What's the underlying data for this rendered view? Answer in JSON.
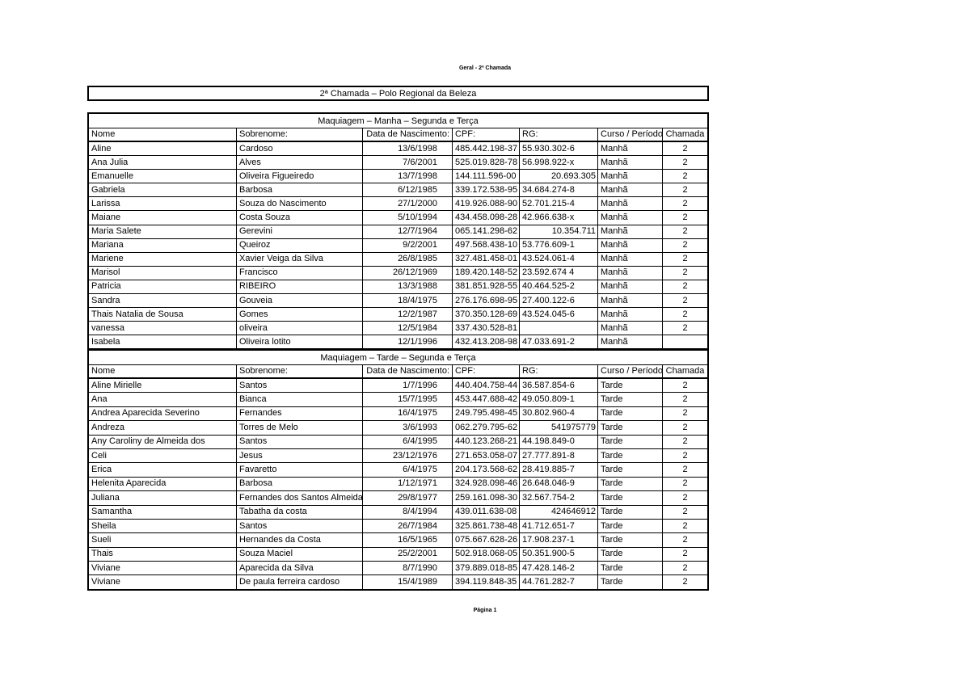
{
  "page": {
    "header_note": "Geral - 2ª Chamada",
    "title": "2ª Chamada – Polo Regional da Beleza",
    "footer": "Página 1"
  },
  "columns": [
    "Nome",
    "Sobrenome:",
    "Data de Nascimento:",
    "CPF:",
    "RG:",
    "Curso / Período –",
    "Chamada"
  ],
  "sections": [
    {
      "title": "Maquiagem – Manha – Segunda e Terça",
      "rows": [
        {
          "nome": "Aline",
          "sobrenome": "Cardoso",
          "nascimento": "13/6/1998",
          "cpf": "485.442.198-37",
          "rg": "55.930.302-6",
          "curso": "Manhã",
          "chamada": "2"
        },
        {
          "nome": "Ana Julia",
          "sobrenome": "Alves",
          "nascimento": "7/6/2001",
          "cpf": "525.019.828-78",
          "rg": "56.998.922-x",
          "curso": "Manhã",
          "chamada": "2"
        },
        {
          "nome": "Emanuelle",
          "sobrenome": "Oliveira Figueiredo",
          "nascimento": "13/7/1998",
          "cpf": "144.111.596-00",
          "rg": "20.693.305",
          "curso": "Manhã",
          "chamada": "2"
        },
        {
          "nome": "Gabriela",
          "sobrenome": "Barbosa",
          "nascimento": "6/12/1985",
          "cpf": "339.172.538-95",
          "rg": "34.684.274-8",
          "curso": "Manhã",
          "chamada": "2"
        },
        {
          "nome": "Larissa",
          "sobrenome": "Souza do Nascimento",
          "nascimento": "27/1/2000",
          "cpf": "419.926.088-90",
          "rg": "52.701.215-4",
          "curso": "Manhã",
          "chamada": "2"
        },
        {
          "nome": "Maiane",
          "sobrenome": "Costa Souza",
          "nascimento": "5/10/1994",
          "cpf": "434.458.098-28",
          "rg": "42.966.638-x",
          "curso": "Manhã",
          "chamada": "2"
        },
        {
          "nome": "Maria Salete",
          "sobrenome": "Gerevini",
          "nascimento": "12/7/1964",
          "cpf": "065.141.298-62",
          "rg": "10.354.711",
          "curso": "Manhã",
          "chamada": "2"
        },
        {
          "nome": "Mariana",
          "sobrenome": "Queiroz",
          "nascimento": "9/2/2001",
          "cpf": "497.568.438-10",
          "rg": "53.776.609-1",
          "curso": "Manhã",
          "chamada": "2"
        },
        {
          "nome": "Mariene",
          "sobrenome": "Xavier Veiga da Silva",
          "nascimento": "26/8/1985",
          "cpf": "327.481.458-01",
          "rg": "43.524.061-4",
          "curso": "Manhã",
          "chamada": "2"
        },
        {
          "nome": "Marisol",
          "sobrenome": "Francisco",
          "nascimento": "26/12/1969",
          "cpf": "189.420.148-52",
          "rg": "23.592.674 4",
          "curso": "Manhã",
          "chamada": "2"
        },
        {
          "nome": "Patricia",
          "sobrenome": "RIBEIRO",
          "nascimento": "13/3/1988",
          "cpf": "381.851.928-55",
          "rg": "40.464.525-2",
          "curso": "Manhã",
          "chamada": "2"
        },
        {
          "nome": "Sandra",
          "sobrenome": "Gouveia",
          "nascimento": "18/4/1975",
          "cpf": "276.176.698-95",
          "rg": "27.400.122-6",
          "curso": "Manhã",
          "chamada": "2"
        },
        {
          "nome": "Thais Natalia de Sousa",
          "sobrenome": "Gomes",
          "nascimento": "12/2/1987",
          "cpf": "370.350.128-69",
          "rg": "43.524.045-6",
          "curso": "Manhã",
          "chamada": "2"
        },
        {
          "nome": "vanessa",
          "sobrenome": "oliveira",
          "nascimento": "12/5/1984",
          "cpf": "337.430.528-81",
          "rg": "",
          "curso": "Manhã",
          "chamada": "2"
        },
        {
          "nome": "Isabela",
          "sobrenome": "Oliveira lotito",
          "nascimento": "12/1/1996",
          "cpf": "432.413.208-98",
          "rg": "47.033.691-2",
          "curso": "Manhã",
          "chamada": ""
        }
      ]
    },
    {
      "title": "Maquiagem – Tarde – Segunda e Terça",
      "rows": [
        {
          "nome": "Aline Mirielle",
          "sobrenome": "Santos",
          "nascimento": "1/7/1996",
          "cpf": "440.404.758-44",
          "rg": "36.587.854-6",
          "curso": "Tarde",
          "chamada": "2"
        },
        {
          "nome": "Ana",
          "sobrenome": "Bianca",
          "nascimento": "15/7/1995",
          "cpf": "453.447.688-42",
          "rg": "49.050.809-1",
          "curso": "Tarde",
          "chamada": "2"
        },
        {
          "nome": "Andrea Aparecida Severino",
          "sobrenome": "Fernandes",
          "nascimento": "16/4/1975",
          "cpf": "249.795.498-45",
          "rg": "30.802.960-4",
          "curso": "Tarde",
          "chamada": "2"
        },
        {
          "nome": "Andreza",
          "sobrenome": "Torres de Melo",
          "nascimento": "3/6/1993",
          "cpf": "062.279.795-62",
          "rg": "541975779",
          "curso": "Tarde",
          "chamada": "2"
        },
        {
          "nome": "Any Caroliny de Almeida dos",
          "sobrenome": "Santos",
          "nascimento": "6/4/1995",
          "cpf": "440.123.268-21",
          "rg": "44.198.849-0",
          "curso": "Tarde",
          "chamada": "2"
        },
        {
          "nome": "Celi",
          "sobrenome": "Jesus",
          "nascimento": "23/12/1976",
          "cpf": "271.653.058-07",
          "rg": "27.777.891-8",
          "curso": "Tarde",
          "chamada": "2"
        },
        {
          "nome": "Erica",
          "sobrenome": "Favaretto",
          "nascimento": "6/4/1975",
          "cpf": "204.173.568-62",
          "rg": "28.419.885-7",
          "curso": "Tarde",
          "chamada": "2"
        },
        {
          "nome": "Helenita Aparecida",
          "sobrenome": "Barbosa",
          "nascimento": "1/12/1971",
          "cpf": "324.928.098-46",
          "rg": "26.648.046-9",
          "curso": "Tarde",
          "chamada": "2"
        },
        {
          "nome": "Juliana",
          "sobrenome": "Fernandes dos Santos Almeida",
          "nascimento": "29/8/1977",
          "cpf": "259.161.098-30",
          "rg": "32.567.754-2",
          "curso": "Tarde",
          "chamada": "2"
        },
        {
          "nome": "Samantha",
          "sobrenome": "Tabatha da costa",
          "nascimento": "8/4/1994",
          "cpf": "439.011.638-08",
          "rg": "424646912",
          "curso": "Tarde",
          "chamada": "2"
        },
        {
          "nome": "Sheila",
          "sobrenome": "Santos",
          "nascimento": "26/7/1984",
          "cpf": "325.861.738-48",
          "rg": "41.712.651-7",
          "curso": "Tarde",
          "chamada": "2"
        },
        {
          "nome": "Sueli",
          "sobrenome": "Hernandes da Costa",
          "nascimento": "16/5/1965",
          "cpf": "075.667.628-26",
          "rg": "17.908.237-1",
          "curso": "Tarde",
          "chamada": "2"
        },
        {
          "nome": "Thais",
          "sobrenome": "Souza Maciel",
          "nascimento": "25/2/2001",
          "cpf": "502.918.068-05",
          "rg": "50.351.900-5",
          "curso": "Tarde",
          "chamada": "2"
        },
        {
          "nome": "Viviane",
          "sobrenome": "Aparecida da Silva",
          "nascimento": "8/7/1990",
          "cpf": "379.889.018-85",
          "rg": "47.428.146-2",
          "curso": "Tarde",
          "chamada": "2"
        },
        {
          "nome": "Viviane",
          "sobrenome": "De paula ferreira cardoso",
          "nascimento": "15/4/1989",
          "cpf": "394.119.848-35",
          "rg": "44.761.282-7",
          "curso": "Tarde",
          "chamada": "2"
        }
      ]
    }
  ]
}
